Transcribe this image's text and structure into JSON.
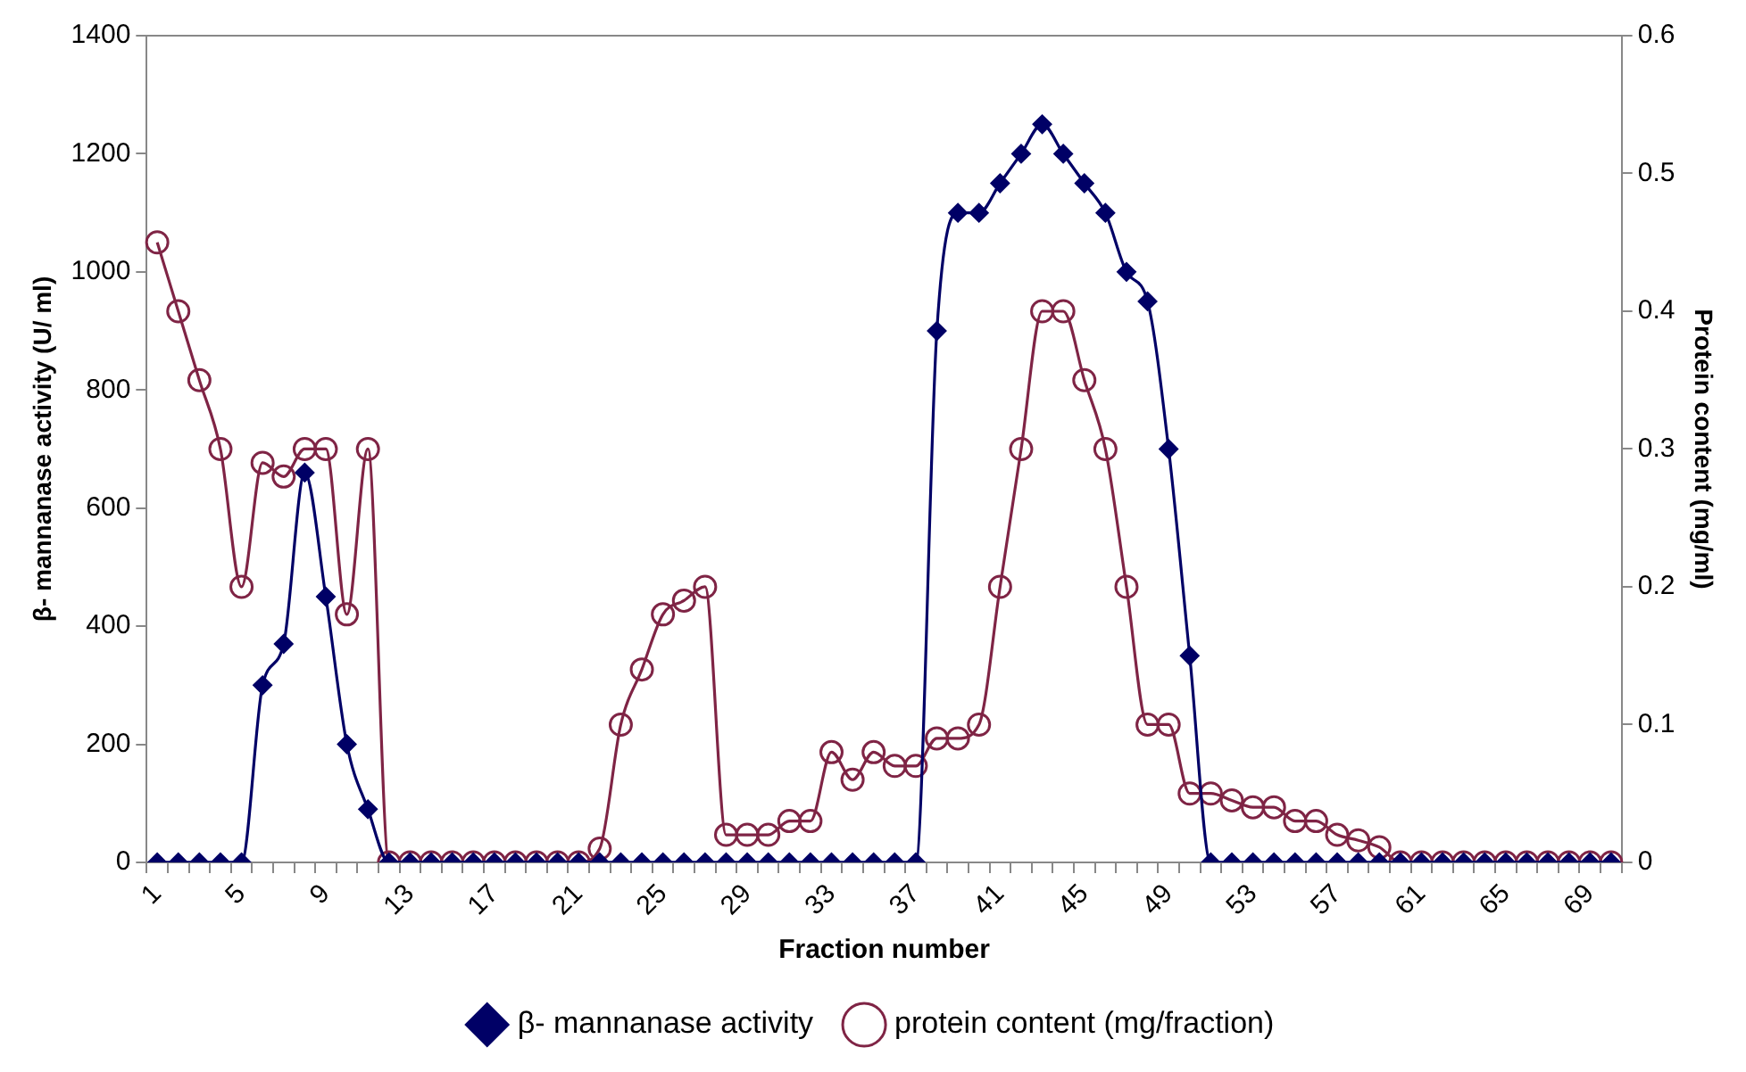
{
  "chart_data": {
    "type": "line",
    "xlabel": "Fraction number",
    "ylabel": "β- mannanase activity (U/ ml)",
    "y2label": "Protein content (mg/ml)",
    "categories": [
      "1",
      null,
      null,
      null,
      "5",
      null,
      null,
      null,
      "9",
      null,
      null,
      null,
      "13",
      null,
      null,
      null,
      "17",
      null,
      null,
      null,
      "21",
      null,
      null,
      null,
      "25",
      null,
      null,
      null,
      "29",
      null,
      null,
      null,
      "33",
      null,
      null,
      null,
      "37",
      null,
      null,
      null,
      "41",
      null,
      null,
      null,
      "45",
      null,
      null,
      null,
      "49",
      null,
      null,
      null,
      "53",
      null,
      null,
      null,
      "57",
      null,
      null,
      null,
      "61",
      null,
      null,
      null,
      "65",
      null,
      null,
      null,
      "69",
      null
    ],
    "series": [
      {
        "name": "β- mannanase activity",
        "color": "#000066",
        "marker": "diamond",
        "values": [
          0,
          0,
          0,
          0,
          0,
          300,
          370,
          660,
          450,
          200,
          90,
          0,
          0,
          0,
          0,
          0,
          0,
          0,
          0,
          0,
          0,
          0,
          0,
          0,
          0,
          0,
          0,
          0,
          0,
          0,
          0,
          0,
          0,
          0,
          0,
          0,
          0,
          900,
          1100,
          1100,
          1150,
          1200,
          1250,
          1200,
          1150,
          1100,
          1000,
          950,
          700,
          350,
          0,
          0,
          0,
          0,
          0,
          0,
          0,
          0,
          0,
          0,
          0,
          0,
          0,
          0,
          0,
          0,
          0,
          0,
          0,
          0
        ]
      },
      {
        "name": "protein content (mg/fraction)",
        "color": "#7f2445",
        "marker": "circle",
        "axis": "y2",
        "values": [
          0.45,
          0.4,
          0.35,
          0.3,
          0.2,
          0.29,
          0.28,
          0.3,
          0.3,
          0.18,
          0.3,
          0,
          0,
          0,
          0,
          0,
          0,
          0,
          0,
          0,
          0,
          0.01,
          0.1,
          0.14,
          0.18,
          0.19,
          0.2,
          0.02,
          0.02,
          0.02,
          0.03,
          0.03,
          0.08,
          0.06,
          0.08,
          0.07,
          0.07,
          0.09,
          0.09,
          0.1,
          0.2,
          0.3,
          0.4,
          0.4,
          0.35,
          0.3,
          0.2,
          0.1,
          0.1,
          0.05,
          0.05,
          0.045,
          0.04,
          0.04,
          0.03,
          0.03,
          0.02,
          0.016,
          0.011,
          0,
          0,
          0,
          0,
          0,
          0,
          0,
          0,
          0,
          0,
          0
        ]
      }
    ],
    "ylim": [
      0,
      1400
    ],
    "yticks": [
      0,
      200,
      400,
      600,
      800,
      1000,
      1200,
      1400
    ],
    "y2lim": [
      0,
      0.6
    ],
    "y2ticks": [
      0,
      0.1,
      0.2,
      0.3,
      0.4,
      0.5,
      0.6
    ],
    "grid": false,
    "legend": "bottom"
  }
}
